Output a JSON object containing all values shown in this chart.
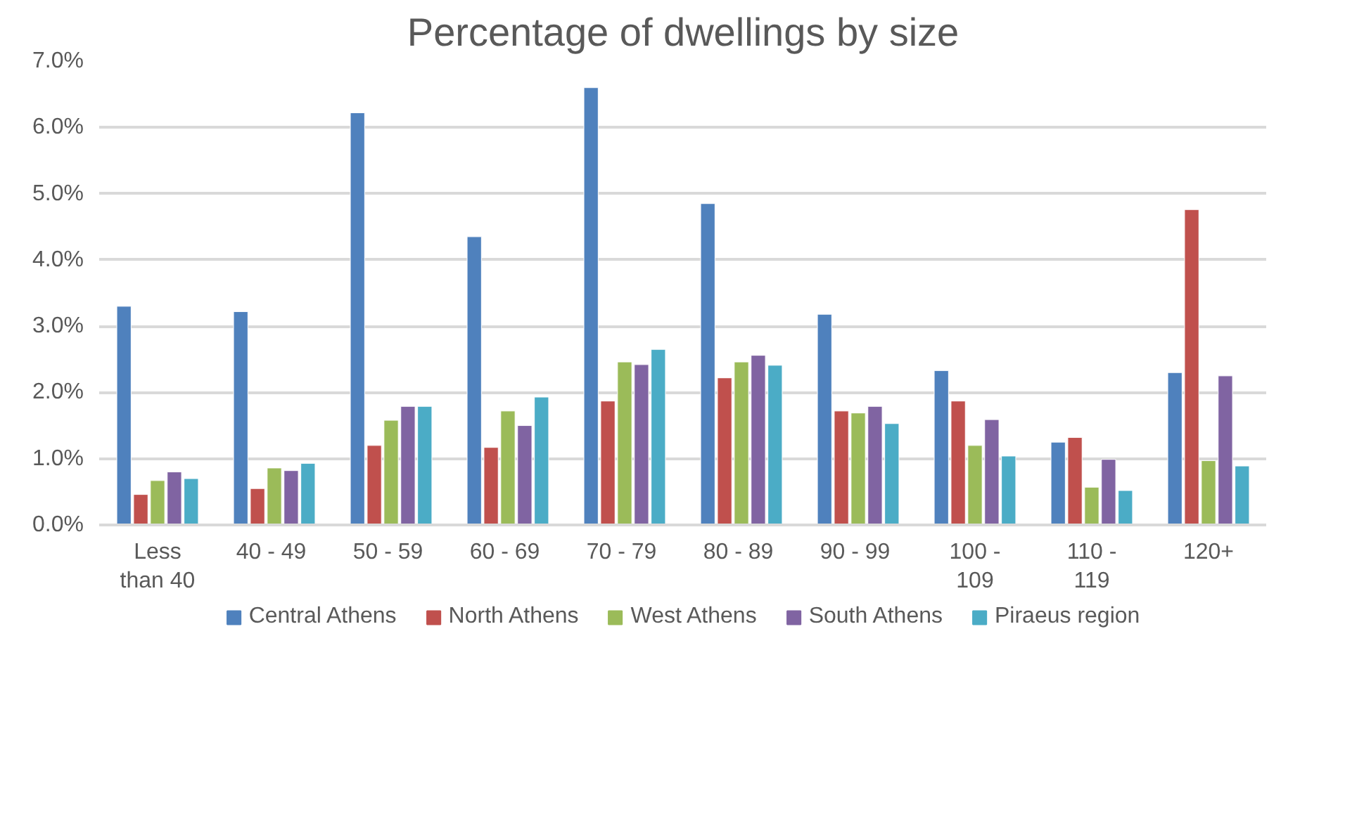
{
  "chart_data": {
    "type": "bar",
    "title": "Percentage of dwellings by size",
    "categories": [
      "Less than 40",
      "40 -  49",
      "50 -  59",
      "60 -  69",
      "70 -  79",
      "80 -  89",
      "90 -  99",
      "100 - 109",
      "110 - 119",
      "120+"
    ],
    "series": [
      {
        "name": "Central Athens",
        "color": "#4f81bd",
        "values": [
          3.3,
          3.22,
          6.22,
          4.35,
          6.6,
          4.85,
          3.18,
          2.33,
          1.25,
          2.3
        ]
      },
      {
        "name": "North Athens",
        "color": "#c0504d",
        "values": [
          0.46,
          0.55,
          1.2,
          1.17,
          1.87,
          2.22,
          1.72,
          1.87,
          1.32,
          4.76
        ]
      },
      {
        "name": "West Athens",
        "color": "#9bbb59",
        "values": [
          0.67,
          0.86,
          1.58,
          1.72,
          2.46,
          2.46,
          1.69,
          1.2,
          0.57,
          0.97
        ]
      },
      {
        "name": "South Athens",
        "color": "#8064a2",
        "values": [
          0.8,
          0.82,
          1.79,
          1.5,
          2.42,
          2.56,
          1.79,
          1.59,
          0.99,
          2.25
        ]
      },
      {
        "name": "Piraeus region",
        "color": "#4bacc6",
        "values": [
          0.7,
          0.93,
          1.79,
          1.93,
          2.65,
          2.41,
          1.53,
          1.04,
          0.52,
          0.89
        ]
      }
    ],
    "ylim": [
      0,
      7
    ],
    "yticks": [
      {
        "value": 0,
        "label": "0.0%"
      },
      {
        "value": 1,
        "label": "1.0%"
      },
      {
        "value": 2,
        "label": "2.0%"
      },
      {
        "value": 3,
        "label": "3.0%"
      },
      {
        "value": 4,
        "label": "4.0%"
      },
      {
        "value": 5,
        "label": "5.0%"
      },
      {
        "value": 6,
        "label": "6.0%"
      },
      {
        "value": 7,
        "label": "7.0%"
      }
    ],
    "grid": "y",
    "legend": "bottom"
  }
}
